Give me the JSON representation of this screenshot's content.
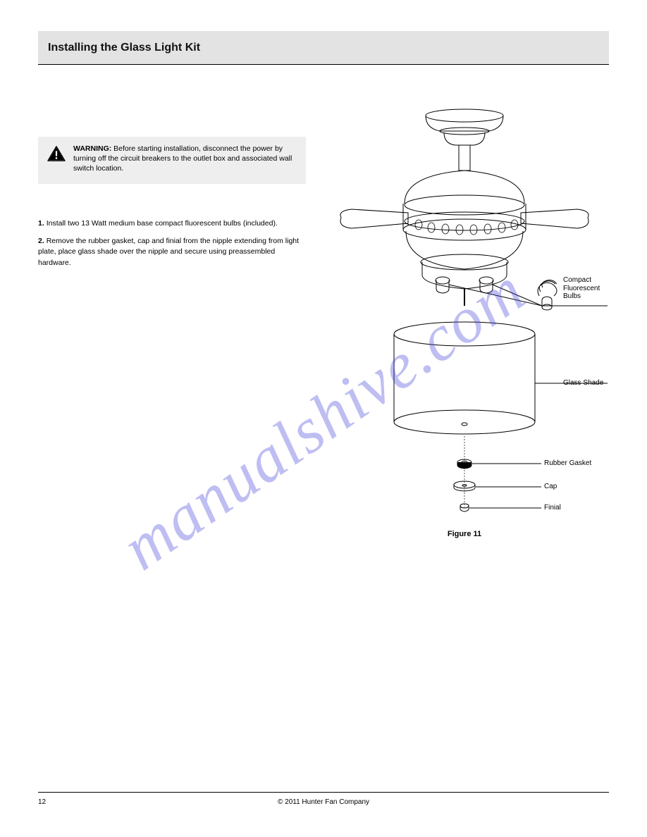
{
  "header": {
    "title": "Installing the Glass Light Kit"
  },
  "warning": {
    "heading": "WARNING:",
    "text": " Before starting installation, disconnect the power by turning off the circuit breakers to the outlet box and associated wall switch location."
  },
  "steps": [
    {
      "num": "1.",
      "text": "Install two 13 Watt medium base compact fluorescent bulbs (included)."
    },
    {
      "num": "2.",
      "text": "Remove the rubber gasket, cap and finial from the nipple extending from light plate, place glass shade over the nipple and secure using preassembled hardware."
    }
  ],
  "figure": {
    "caption": "Figure 11",
    "callouts": {
      "bulbs": "Compact\nFluorescent Bulbs",
      "glass": "Glass Shade",
      "gasket": "Rubber Gasket",
      "cap": "Cap",
      "finial": "Finial"
    },
    "colors": {
      "stroke": "#000000",
      "fill": "#ffffff",
      "bg": "#ffffff",
      "watermark_blue": "rgba(70,70,220,0.35)"
    },
    "line_width": 1
  },
  "footer": {
    "page_num": "12",
    "copyright": "© 2011 Hunter Fan Company"
  },
  "watermark": "manualshive.com"
}
